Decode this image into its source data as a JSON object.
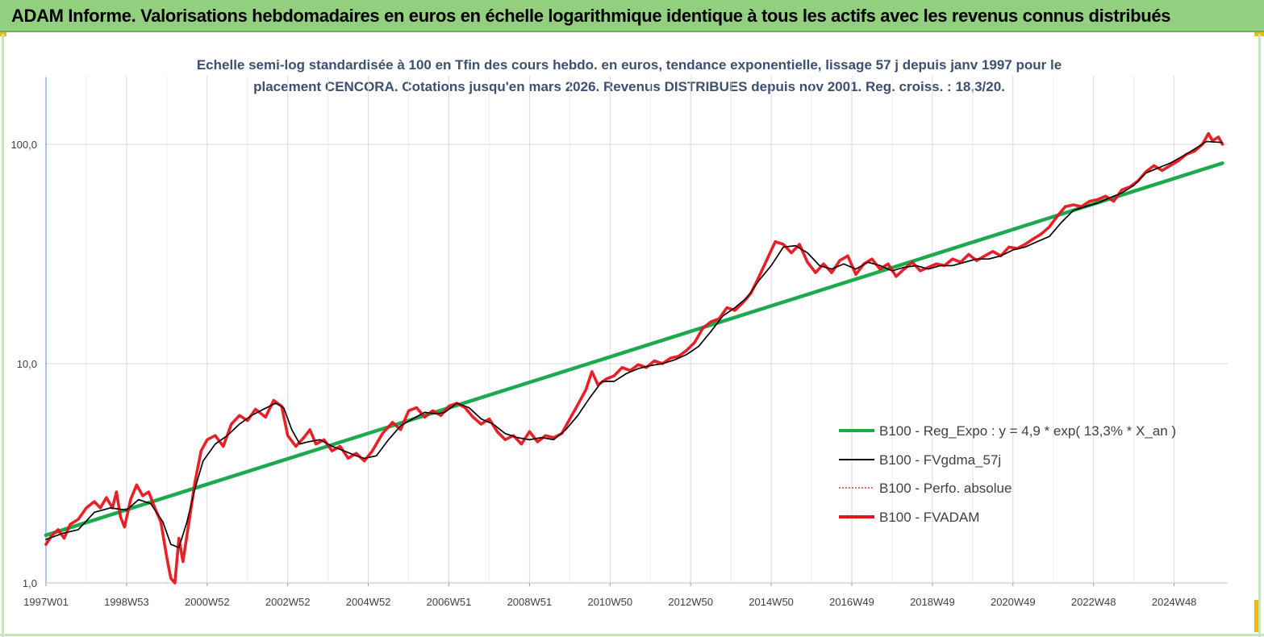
{
  "header": {
    "title": "ADAM Informe. Valorisations hebdomadaires en euros en échelle logarithmique identique à tous les actifs avec les revenus connus distribués"
  },
  "chart_data": {
    "type": "line",
    "subtitle_line1": "Echelle semi-log standardisée à 100 en Tfin des cours hebdo. en euros, tendance exponentielle, lissage 57 j depuis janv 1997 pour le",
    "subtitle_line2": "placement CENCORA. Cotations jusqu'en mars 2026. Revenus DISTRIBUES depuis nov 2001. Reg. croiss. : 18,3/20.",
    "y_scale": "log",
    "ylim": [
      1,
      190
    ],
    "y_ticks": [
      {
        "value": 1,
        "label": "1,0"
      },
      {
        "value": 10,
        "label": "10,0"
      },
      {
        "value": 100,
        "label": "100,0"
      }
    ],
    "xlim": [
      1997.0,
      2026.2
    ],
    "x_ticks": [
      {
        "year": 1997.0,
        "label": "1997W01"
      },
      {
        "year": 1999.0,
        "label": "1998W53"
      },
      {
        "year": 2001.0,
        "label": "2000W52"
      },
      {
        "year": 2003.0,
        "label": "2002W52"
      },
      {
        "year": 2005.0,
        "label": "2004W52"
      },
      {
        "year": 2007.0,
        "label": "2006W51"
      },
      {
        "year": 2009.0,
        "label": "2008W51"
      },
      {
        "year": 2011.0,
        "label": "2010W50"
      },
      {
        "year": 2013.0,
        "label": "2012W50"
      },
      {
        "year": 2015.0,
        "label": "2014W50"
      },
      {
        "year": 2017.0,
        "label": "2016W49"
      },
      {
        "year": 2019.0,
        "label": "2018W49"
      },
      {
        "year": 2021.0,
        "label": "2020W49"
      },
      {
        "year": 2023.0,
        "label": "2022W48"
      },
      {
        "year": 2025.0,
        "label": "2024W48"
      }
    ],
    "grid": "vertical",
    "legend_position": "bottom-right",
    "series": [
      {
        "name": "B100 - Reg_Expo : y = 4,9 * exp( 13,3% *  X_an )",
        "color": "#1daa4f",
        "style": "solid-thick",
        "points": [
          [
            1997.0,
            1.65
          ],
          [
            2026.2,
            82
          ]
        ]
      },
      {
        "name": "B100 - FVgdma_57j",
        "color": "#000000",
        "style": "solid-thin",
        "points": [
          [
            1997.0,
            1.58
          ],
          [
            1997.4,
            1.68
          ],
          [
            1997.8,
            1.75
          ],
          [
            1998.2,
            2.1
          ],
          [
            1998.6,
            2.2
          ],
          [
            1999.0,
            2.15
          ],
          [
            1999.3,
            2.4
          ],
          [
            1999.6,
            2.3
          ],
          [
            1999.9,
            1.9
          ],
          [
            2000.1,
            1.5
          ],
          [
            2000.3,
            1.45
          ],
          [
            2000.5,
            1.9
          ],
          [
            2000.7,
            2.7
          ],
          [
            2000.9,
            3.6
          ],
          [
            2001.2,
            4.3
          ],
          [
            2001.5,
            4.7
          ],
          [
            2001.8,
            5.3
          ],
          [
            2002.1,
            5.8
          ],
          [
            2002.4,
            6.2
          ],
          [
            2002.7,
            6.6
          ],
          [
            2002.9,
            6.3
          ],
          [
            2003.1,
            5.0
          ],
          [
            2003.3,
            4.3
          ],
          [
            2003.5,
            4.4
          ],
          [
            2003.8,
            4.5
          ],
          [
            2004.1,
            4.2
          ],
          [
            2004.4,
            4.0
          ],
          [
            2004.7,
            3.8
          ],
          [
            2004.9,
            3.7
          ],
          [
            2005.2,
            3.8
          ],
          [
            2005.5,
            4.5
          ],
          [
            2005.8,
            5.2
          ],
          [
            2006.1,
            5.6
          ],
          [
            2006.4,
            6.0
          ],
          [
            2006.7,
            5.9
          ],
          [
            2006.9,
            6.0
          ],
          [
            2007.2,
            6.6
          ],
          [
            2007.5,
            6.3
          ],
          [
            2007.8,
            5.6
          ],
          [
            2008.1,
            5.3
          ],
          [
            2008.4,
            4.8
          ],
          [
            2008.7,
            4.6
          ],
          [
            2009.0,
            4.5
          ],
          [
            2009.3,
            4.6
          ],
          [
            2009.6,
            4.5
          ],
          [
            2009.9,
            5.0
          ],
          [
            2010.2,
            5.8
          ],
          [
            2010.5,
            7.0
          ],
          [
            2010.8,
            8.3
          ],
          [
            2011.1,
            8.3
          ],
          [
            2011.4,
            9.0
          ],
          [
            2011.7,
            9.5
          ],
          [
            2012.0,
            9.8
          ],
          [
            2012.3,
            10.0
          ],
          [
            2012.6,
            10.4
          ],
          [
            2012.9,
            11.0
          ],
          [
            2013.2,
            12.0
          ],
          [
            2013.5,
            14.0
          ],
          [
            2013.8,
            16.5
          ],
          [
            2014.1,
            18.0
          ],
          [
            2014.4,
            20.0
          ],
          [
            2014.7,
            24.0
          ],
          [
            2015.0,
            28.0
          ],
          [
            2015.3,
            34.0
          ],
          [
            2015.6,
            34.5
          ],
          [
            2015.9,
            32.0
          ],
          [
            2016.2,
            28.0
          ],
          [
            2016.5,
            27.0
          ],
          [
            2016.8,
            28.5
          ],
          [
            2017.1,
            27.0
          ],
          [
            2017.4,
            29.0
          ],
          [
            2017.7,
            28.0
          ],
          [
            2018.0,
            26.5
          ],
          [
            2018.3,
            27.5
          ],
          [
            2018.6,
            28.0
          ],
          [
            2018.9,
            27.0
          ],
          [
            2019.2,
            28.0
          ],
          [
            2019.5,
            28.0
          ],
          [
            2019.8,
            29.0
          ],
          [
            2020.1,
            30.0
          ],
          [
            2020.4,
            30.0
          ],
          [
            2020.7,
            31.0
          ],
          [
            2021.0,
            33.0
          ],
          [
            2021.3,
            34.0
          ],
          [
            2021.6,
            36.0
          ],
          [
            2021.9,
            38.0
          ],
          [
            2022.2,
            44.0
          ],
          [
            2022.5,
            50.0
          ],
          [
            2022.8,
            52.0
          ],
          [
            2023.1,
            54.0
          ],
          [
            2023.4,
            57.0
          ],
          [
            2023.7,
            60.0
          ],
          [
            2024.0,
            65.0
          ],
          [
            2024.3,
            74.0
          ],
          [
            2024.6,
            78.0
          ],
          [
            2024.9,
            82.0
          ],
          [
            2025.2,
            88.0
          ],
          [
            2025.5,
            95.0
          ],
          [
            2025.8,
            103.0
          ],
          [
            2026.2,
            102.0
          ]
        ]
      },
      {
        "name": "B100 - Perfo. absolue",
        "color": "#e8353a",
        "style": "dotted",
        "points": []
      },
      {
        "name": "B100 - FVADAM",
        "color": "#e8141c",
        "style": "solid-thick",
        "points": [
          [
            1997.0,
            1.5
          ],
          [
            1997.15,
            1.65
          ],
          [
            1997.3,
            1.75
          ],
          [
            1997.45,
            1.6
          ],
          [
            1997.6,
            1.85
          ],
          [
            1997.8,
            1.95
          ],
          [
            1998.0,
            2.2
          ],
          [
            1998.2,
            2.35
          ],
          [
            1998.35,
            2.2
          ],
          [
            1998.5,
            2.45
          ],
          [
            1998.65,
            2.2
          ],
          [
            1998.75,
            2.6
          ],
          [
            1998.85,
            2.0
          ],
          [
            1998.95,
            1.8
          ],
          [
            1999.1,
            2.4
          ],
          [
            1999.25,
            2.8
          ],
          [
            1999.4,
            2.5
          ],
          [
            1999.55,
            2.6
          ],
          [
            1999.7,
            2.2
          ],
          [
            1999.85,
            1.9
          ],
          [
            2000.0,
            1.3
          ],
          [
            2000.1,
            1.05
          ],
          [
            2000.2,
            1.0
          ],
          [
            2000.3,
            1.6
          ],
          [
            2000.4,
            1.25
          ],
          [
            2000.55,
            1.9
          ],
          [
            2000.7,
            2.9
          ],
          [
            2000.85,
            4.0
          ],
          [
            2001.0,
            4.5
          ],
          [
            2001.2,
            4.7
          ],
          [
            2001.4,
            4.2
          ],
          [
            2001.6,
            5.3
          ],
          [
            2001.8,
            5.8
          ],
          [
            2002.0,
            5.5
          ],
          [
            2002.2,
            6.2
          ],
          [
            2002.45,
            5.7
          ],
          [
            2002.65,
            6.8
          ],
          [
            2002.85,
            6.4
          ],
          [
            2003.0,
            4.7
          ],
          [
            2003.2,
            4.2
          ],
          [
            2003.4,
            4.6
          ],
          [
            2003.55,
            5.0
          ],
          [
            2003.7,
            4.3
          ],
          [
            2003.9,
            4.5
          ],
          [
            2004.1,
            4.0
          ],
          [
            2004.3,
            4.2
          ],
          [
            2004.5,
            3.7
          ],
          [
            2004.7,
            3.9
          ],
          [
            2004.9,
            3.6
          ],
          [
            2005.1,
            4.0
          ],
          [
            2005.35,
            4.8
          ],
          [
            2005.6,
            5.4
          ],
          [
            2005.8,
            5.0
          ],
          [
            2006.0,
            6.1
          ],
          [
            2006.2,
            6.3
          ],
          [
            2006.4,
            5.7
          ],
          [
            2006.6,
            6.1
          ],
          [
            2006.8,
            5.8
          ],
          [
            2007.0,
            6.4
          ],
          [
            2007.2,
            6.6
          ],
          [
            2007.4,
            6.3
          ],
          [
            2007.6,
            5.7
          ],
          [
            2007.8,
            5.3
          ],
          [
            2008.0,
            5.6
          ],
          [
            2008.2,
            4.9
          ],
          [
            2008.4,
            4.5
          ],
          [
            2008.6,
            4.7
          ],
          [
            2008.8,
            4.3
          ],
          [
            2009.0,
            4.9
          ],
          [
            2009.2,
            4.4
          ],
          [
            2009.4,
            4.7
          ],
          [
            2009.6,
            4.6
          ],
          [
            2009.8,
            4.8
          ],
          [
            2010.0,
            5.6
          ],
          [
            2010.2,
            6.5
          ],
          [
            2010.4,
            7.6
          ],
          [
            2010.55,
            9.2
          ],
          [
            2010.7,
            8.0
          ],
          [
            2010.9,
            8.5
          ],
          [
            2011.1,
            8.8
          ],
          [
            2011.3,
            9.6
          ],
          [
            2011.5,
            9.3
          ],
          [
            2011.7,
            9.9
          ],
          [
            2011.9,
            9.6
          ],
          [
            2012.1,
            10.3
          ],
          [
            2012.3,
            10.0
          ],
          [
            2012.5,
            10.6
          ],
          [
            2012.7,
            10.8
          ],
          [
            2012.9,
            11.5
          ],
          [
            2013.1,
            12.5
          ],
          [
            2013.3,
            14.5
          ],
          [
            2013.5,
            15.5
          ],
          [
            2013.7,
            16.0
          ],
          [
            2013.9,
            18.0
          ],
          [
            2014.1,
            17.5
          ],
          [
            2014.3,
            19.0
          ],
          [
            2014.5,
            21.0
          ],
          [
            2014.7,
            25.0
          ],
          [
            2014.9,
            30.0
          ],
          [
            2015.1,
            36.0
          ],
          [
            2015.3,
            35.0
          ],
          [
            2015.5,
            32.0
          ],
          [
            2015.7,
            35.0
          ],
          [
            2015.9,
            29.0
          ],
          [
            2016.1,
            26.0
          ],
          [
            2016.3,
            28.5
          ],
          [
            2016.5,
            26.0
          ],
          [
            2016.7,
            29.5
          ],
          [
            2016.9,
            31.0
          ],
          [
            2017.1,
            25.5
          ],
          [
            2017.3,
            28.5
          ],
          [
            2017.5,
            30.0
          ],
          [
            2017.7,
            27.0
          ],
          [
            2017.9,
            28.5
          ],
          [
            2018.1,
            25.0
          ],
          [
            2018.3,
            27.0
          ],
          [
            2018.5,
            29.0
          ],
          [
            2018.7,
            26.5
          ],
          [
            2018.9,
            27.5
          ],
          [
            2019.1,
            28.5
          ],
          [
            2019.3,
            28.0
          ],
          [
            2019.5,
            30.0
          ],
          [
            2019.7,
            29.0
          ],
          [
            2019.9,
            31.5
          ],
          [
            2020.1,
            29.5
          ],
          [
            2020.3,
            31.0
          ],
          [
            2020.5,
            32.5
          ],
          [
            2020.7,
            31.0
          ],
          [
            2020.9,
            34.0
          ],
          [
            2021.1,
            33.5
          ],
          [
            2021.3,
            35.0
          ],
          [
            2021.5,
            37.0
          ],
          [
            2021.7,
            39.0
          ],
          [
            2021.9,
            42.0
          ],
          [
            2022.1,
            47.0
          ],
          [
            2022.3,
            52.0
          ],
          [
            2022.5,
            53.0
          ],
          [
            2022.7,
            52.0
          ],
          [
            2022.9,
            55.0
          ],
          [
            2023.1,
            56.0
          ],
          [
            2023.3,
            58.0
          ],
          [
            2023.5,
            55.0
          ],
          [
            2023.7,
            62.0
          ],
          [
            2023.9,
            64.0
          ],
          [
            2024.1,
            68.0
          ],
          [
            2024.3,
            75.0
          ],
          [
            2024.5,
            80.0
          ],
          [
            2024.7,
            76.0
          ],
          [
            2024.9,
            80.0
          ],
          [
            2025.1,
            84.0
          ],
          [
            2025.3,
            90.0
          ],
          [
            2025.5,
            93.0
          ],
          [
            2025.7,
            100.0
          ],
          [
            2025.85,
            112.0
          ],
          [
            2025.95,
            104.0
          ],
          [
            2026.1,
            108.0
          ],
          [
            2026.2,
            100.0
          ]
        ]
      }
    ]
  }
}
